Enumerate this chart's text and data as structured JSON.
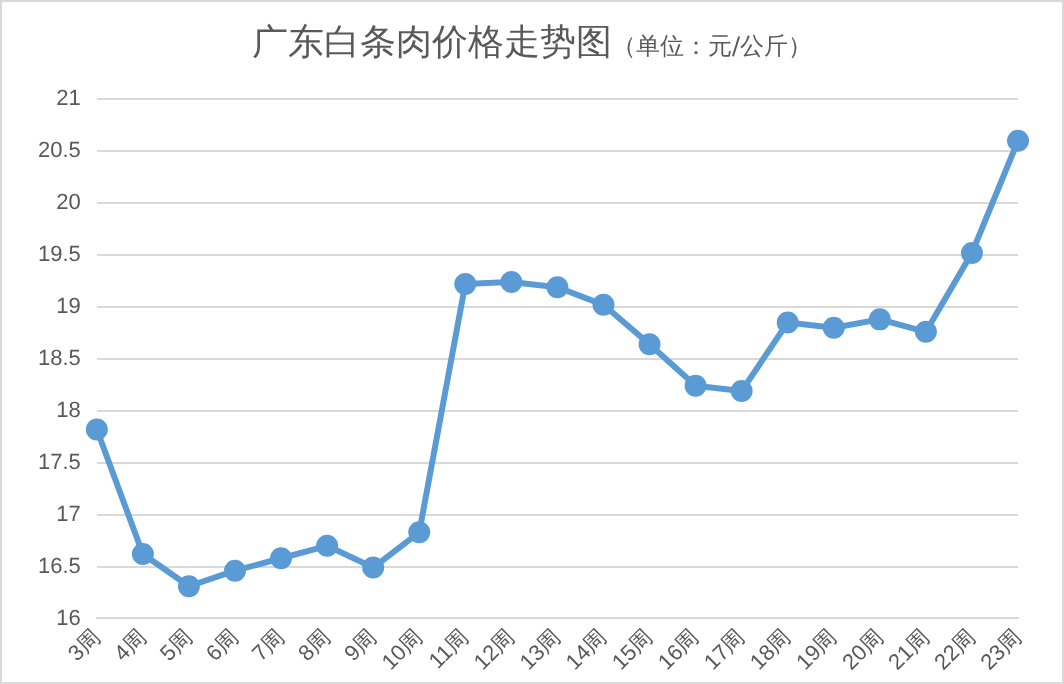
{
  "chart_data": {
    "type": "line",
    "title": "广东白条肉价格走势图",
    "subtitle": "（单位：元/公斤）",
    "categories": [
      "3周",
      "4周",
      "5周",
      "6周",
      "7周",
      "8周",
      "9周",
      "10周",
      "11周",
      "12周",
      "13周",
      "14周",
      "15周",
      "16周",
      "17周",
      "18周",
      "19周",
      "20周",
      "21周",
      "22周",
      "23周"
    ],
    "series": [
      {
        "color": "#5b9bd5",
        "values": [
          17.82,
          16.62,
          16.31,
          16.46,
          16.58,
          16.7,
          16.49,
          16.83,
          19.22,
          19.24,
          19.19,
          19.02,
          18.64,
          18.24,
          18.19,
          18.85,
          18.8,
          18.88,
          18.76,
          19.52,
          20.6
        ]
      }
    ],
    "ylim": [
      16,
      21
    ],
    "yticks": [
      16,
      16.5,
      17,
      17.5,
      18,
      18.5,
      19,
      19.5,
      20,
      20.5,
      21
    ],
    "grid": "y",
    "marker": "circle",
    "line_style": "solid"
  }
}
